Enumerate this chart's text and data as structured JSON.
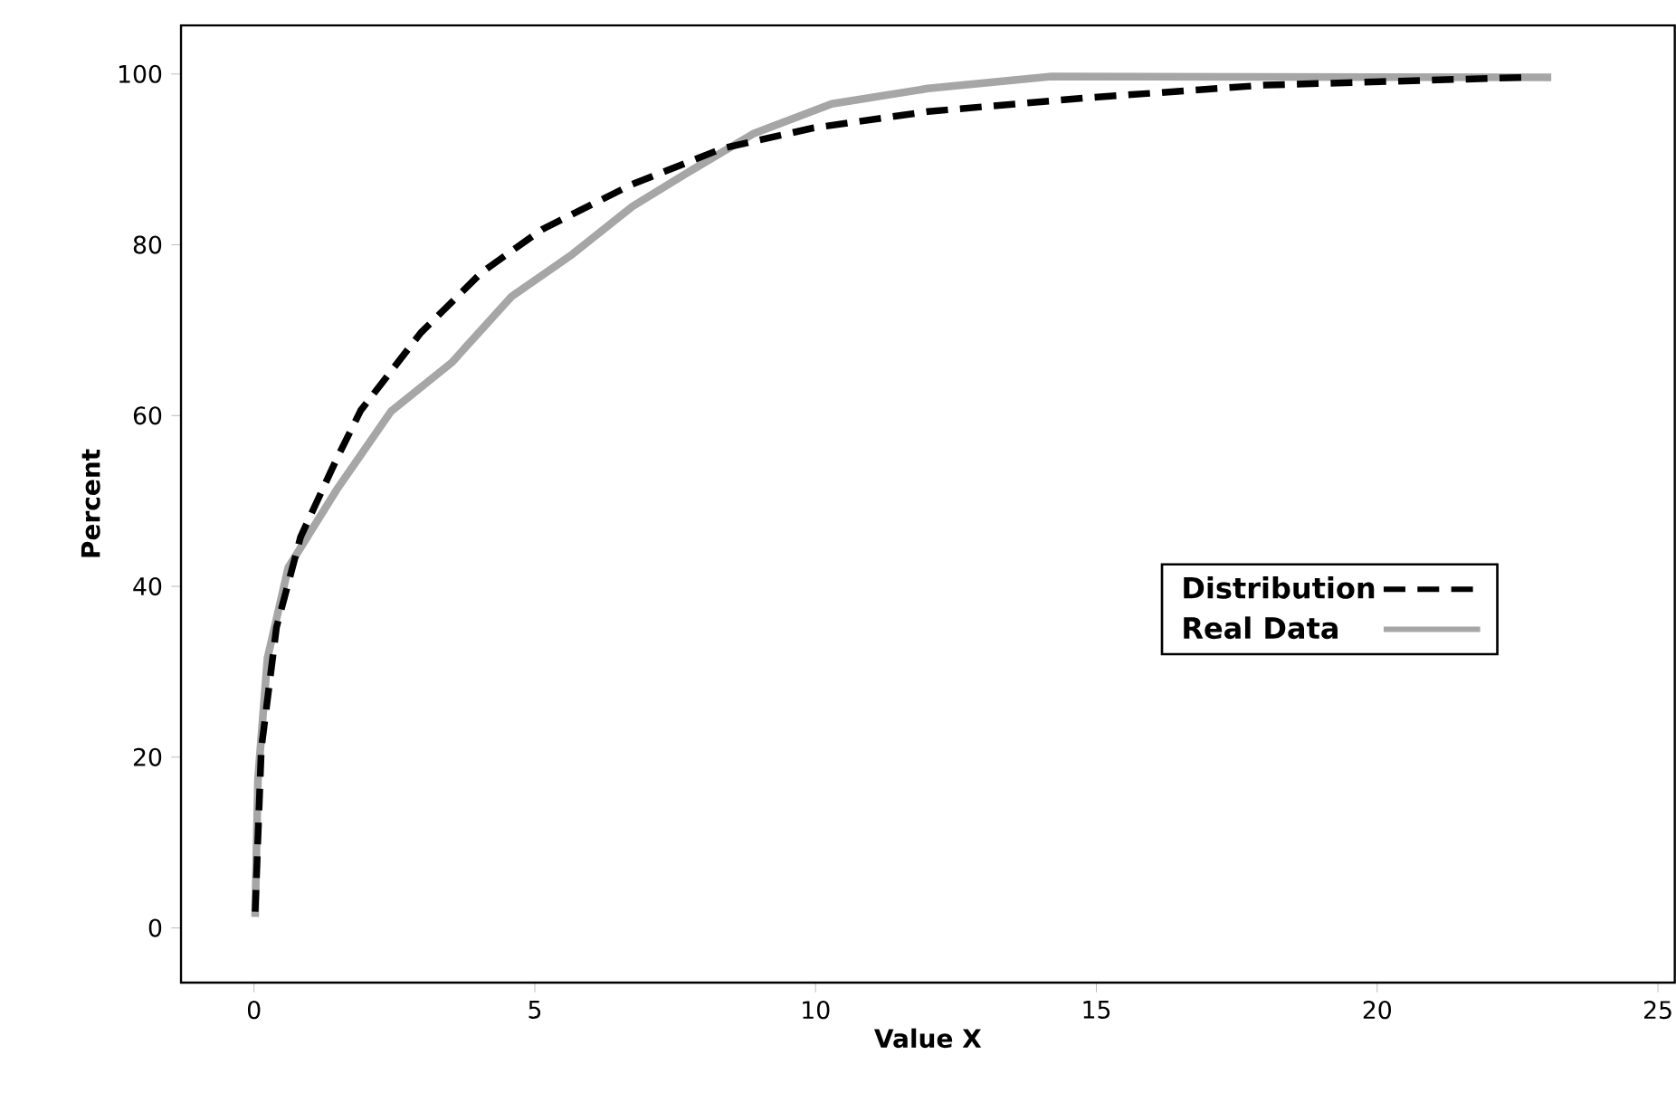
{
  "chart_data": {
    "type": "line",
    "xlabel": "Value X",
    "ylabel": "Percent",
    "xlim": [
      -1.3,
      25.3
    ],
    "ylim": [
      -6.4,
      105.7
    ],
    "xticks": [
      0,
      5,
      10,
      15,
      20,
      25
    ],
    "yticks": [
      0,
      20,
      40,
      60,
      80,
      100
    ],
    "grid": false,
    "legend": "right",
    "marker": "none",
    "series": [
      {
        "name": "Distribution",
        "color": "#000000",
        "line_style": "dashed",
        "x": [
          0.02,
          0.13,
          0.4,
          0.83,
          1.47,
          1.9,
          2.97,
          4.06,
          5.13,
          6.74,
          8.35,
          9.97,
          12,
          14.8,
          18,
          22.6
        ],
        "values": [
          1.9,
          21,
          35.2,
          45.8,
          54.9,
          60.6,
          69.7,
          76.8,
          81.8,
          87.1,
          91.3,
          93.7,
          95.6,
          97.2,
          98.7,
          99.6
        ]
      },
      {
        "name": "Real Data",
        "color": "#a6a6a6",
        "line_style": "solid",
        "x": [
          0.02,
          0.07,
          0.24,
          0.61,
          1.47,
          2.44,
          3.52,
          4.58,
          5.67,
          6.74,
          7.81,
          8.89,
          10.29,
          12,
          14.2,
          23.1
        ],
        "values": [
          1.3,
          17.4,
          31.6,
          42.2,
          51.3,
          60.5,
          66.2,
          73.9,
          78.9,
          84.5,
          88.8,
          93,
          96.5,
          98.3,
          99.7,
          99.6
        ]
      }
    ]
  }
}
